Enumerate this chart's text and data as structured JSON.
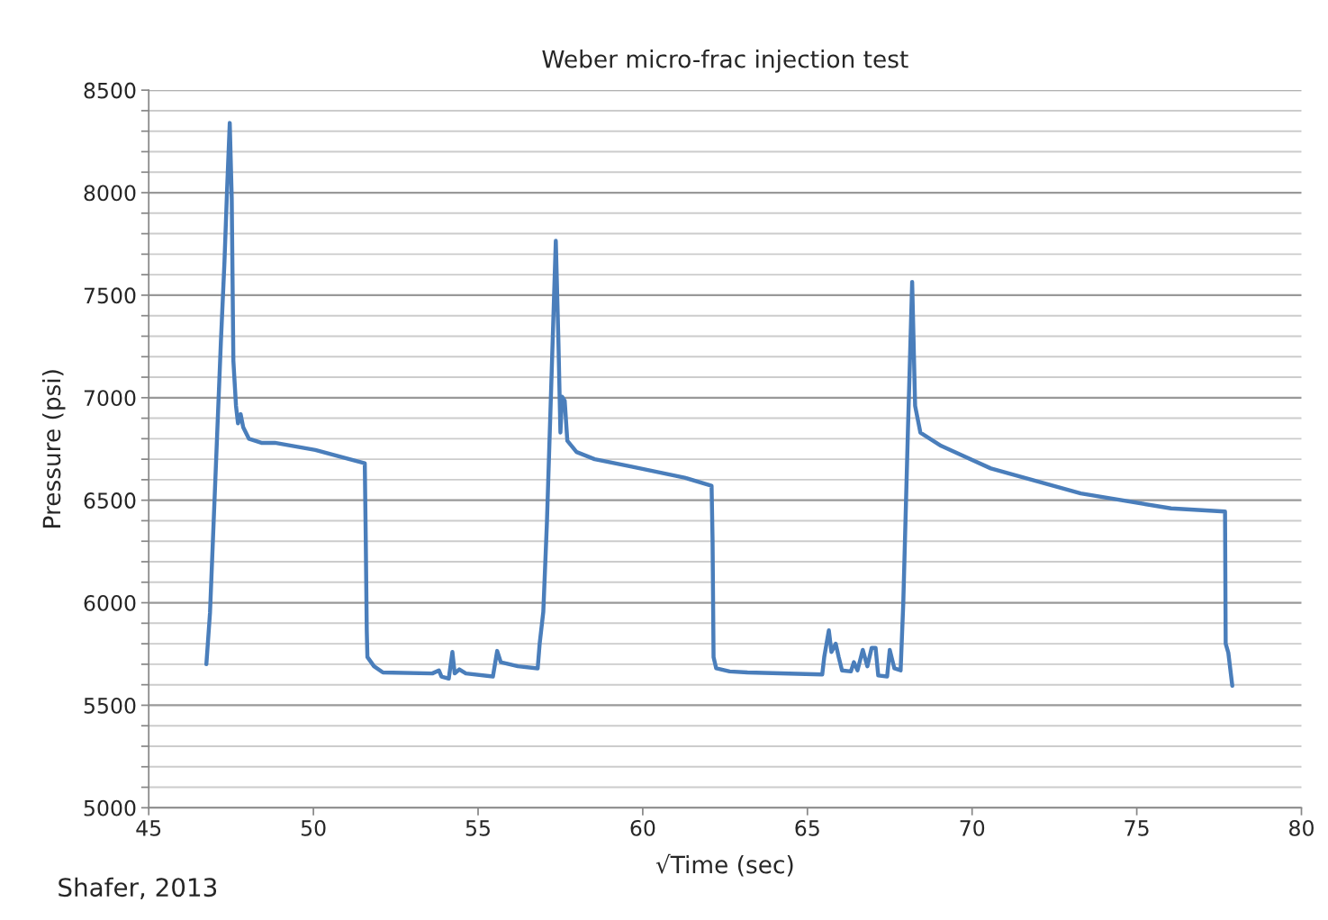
{
  "chart_data": {
    "type": "line",
    "title": "Weber micro-frac injection test",
    "xlabel": "√Time (sec)",
    "ylabel": "Pressure (psi)",
    "annotations": [
      "Shafer, 2013"
    ],
    "xlim": [
      45,
      80
    ],
    "xticks": [
      45,
      50,
      55,
      60,
      65,
      70,
      75,
      80
    ],
    "ylim": [
      5000,
      8500
    ],
    "yticks": [
      5000,
      {
        "value": 5100,
        "label": null
      },
      {
        "value": 5200,
        "label": null
      },
      {
        "value": 5300,
        "label": null
      },
      {
        "value": 5400,
        "label": null
      },
      5500,
      {
        "value": 5600,
        "label": null
      },
      {
        "value": 5700,
        "label": null
      },
      {
        "value": 5800,
        "label": null
      },
      {
        "value": 5900,
        "label": null
      },
      6000,
      {
        "value": 6100,
        "label": null
      },
      {
        "value": 6200,
        "label": null
      },
      {
        "value": 6300,
        "label": null
      },
      {
        "value": 6400,
        "label": null
      },
      6500,
      {
        "value": 6600,
        "label": null
      },
      {
        "value": 6700,
        "label": null
      },
      {
        "value": 6800,
        "label": null
      },
      {
        "value": 6900,
        "label": null
      },
      7000,
      {
        "value": 7100,
        "label": null
      },
      {
        "value": 7200,
        "label": null
      },
      {
        "value": 7300,
        "label": null
      },
      {
        "value": 7400,
        "label": null
      },
      7500,
      {
        "value": 7600,
        "label": null
      },
      {
        "value": 7700,
        "label": null
      },
      {
        "value": 7800,
        "label": null
      },
      {
        "value": 7900,
        "label": null
      },
      8000,
      {
        "value": 8100,
        "label": null
      },
      {
        "value": 8200,
        "label": null
      },
      {
        "value": 8300,
        "label": null
      },
      {
        "value": 8400,
        "label": null
      },
      8500
    ],
    "grid": "y",
    "legend": false,
    "marker": "none",
    "line_style": "solid",
    "series": [
      {
        "color": "#4a7ebb",
        "x": [
          46.75,
          46.86,
          46.97,
          47.08,
          47.19,
          47.3,
          47.38,
          47.46,
          47.52,
          47.57,
          47.65,
          47.71,
          47.79,
          47.87,
          48.04,
          48.42,
          48.83,
          50.06,
          51.56,
          51.59,
          51.62,
          51.64,
          51.84,
          52.11,
          53.61,
          53.81,
          53.89,
          54.11,
          54.22,
          54.29,
          54.43,
          54.63,
          55.45,
          55.58,
          55.69,
          56.21,
          56.81,
          56.87,
          56.98,
          57.09,
          57.22,
          57.36,
          57.44,
          57.5,
          57.55,
          57.63,
          57.71,
          57.99,
          58.54,
          59.63,
          61.27,
          62.09,
          62.12,
          62.15,
          62.23,
          62.64,
          63.18,
          65.45,
          65.51,
          65.65,
          65.73,
          65.86,
          65.95,
          66.05,
          66.32,
          66.41,
          66.52,
          66.68,
          66.82,
          66.95,
          67.07,
          67.15,
          67.42,
          67.5,
          67.64,
          67.83,
          67.91,
          68.05,
          68.18,
          68.27,
          68.43,
          69.06,
          70.57,
          73.3,
          76.04,
          77.68,
          77.7,
          77.78,
          77.9
        ],
        "values": [
          5700,
          5950,
          6390,
          6830,
          7270,
          7665,
          8020,
          8340,
          7975,
          7180,
          6960,
          6875,
          6920,
          6855,
          6800,
          6780,
          6780,
          6745,
          6680,
          6305,
          5865,
          5735,
          5690,
          5660,
          5655,
          5670,
          5640,
          5630,
          5760,
          5655,
          5675,
          5655,
          5640,
          5765,
          5710,
          5690,
          5680,
          5800,
          5955,
          6390,
          7050,
          7765,
          7270,
          6830,
          7005,
          6985,
          6790,
          6735,
          6700,
          6665,
          6610,
          6570,
          6305,
          5735,
          5680,
          5665,
          5660,
          5650,
          5735,
          5865,
          5760,
          5800,
          5735,
          5670,
          5665,
          5710,
          5670,
          5770,
          5690,
          5780,
          5780,
          5645,
          5640,
          5770,
          5680,
          5670,
          5995,
          6830,
          7565,
          6960,
          6830,
          6765,
          6655,
          6533,
          6460,
          6445,
          5800,
          5756,
          5595
        ]
      }
    ]
  }
}
